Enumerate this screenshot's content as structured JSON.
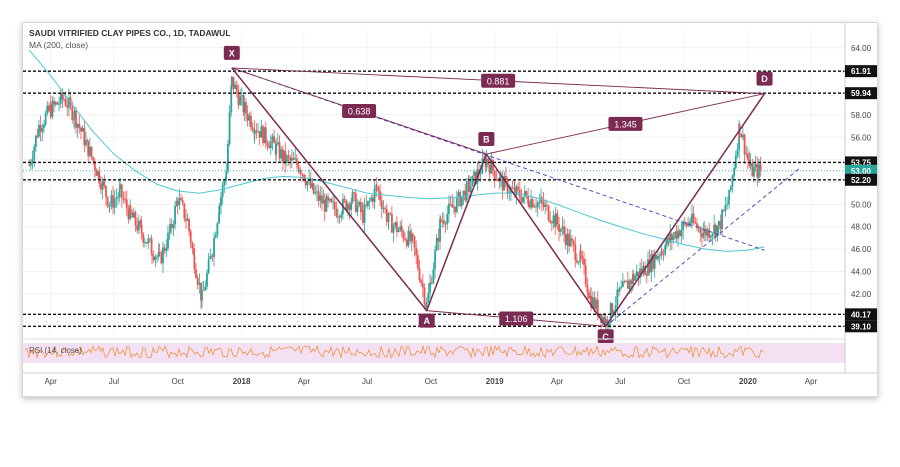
{
  "header": {
    "title": "SAUDI VITRIFIED CLAY PIPES CO., 1D, TADAWUL",
    "ma_label": "MA (200, close)"
  },
  "rsi_label": "RSI (14, close)",
  "colors": {
    "up": "#26a69a",
    "down": "#ef5350",
    "ma": "#4dc9d4",
    "pattern": "#7b2a52",
    "rsi": "#f08a2c",
    "rsi_band": "#f3e0f3",
    "trend": "#4040c0"
  },
  "chart_data": {
    "type": "candlestick",
    "title": "SAUDI VITRIFIED CLAY PIPES CO., 1D, TADAWUL",
    "ylim": [
      38.5,
      65.5
    ],
    "y_ticks": [
      "42.00",
      "44.00",
      "46.00",
      "48.00",
      "50.00",
      "52.00",
      "54.00",
      "56.00",
      "58.00",
      "60.00",
      "62.00",
      "64.00"
    ],
    "x_ticks": [
      "Apr",
      "Jul",
      "Oct",
      "2018",
      "Apr",
      "Jul",
      "Oct",
      "2019",
      "Apr",
      "Jul",
      "Oct",
      "2020",
      "Apr"
    ],
    "price_levels": [
      {
        "label": "61.91",
        "value": 61.91,
        "style": "dark"
      },
      {
        "label": "59.94",
        "value": 59.94,
        "style": "dark"
      },
      {
        "label": "53.75",
        "value": 53.75,
        "style": "dark"
      },
      {
        "label": "53.00",
        "value": 53.0,
        "style": "current"
      },
      {
        "label": "52.20",
        "value": 52.2,
        "style": "dark"
      },
      {
        "label": "40.17",
        "value": 40.17,
        "style": "dark"
      },
      {
        "label": "39.10",
        "value": 39.1,
        "style": "dark"
      }
    ],
    "pattern_points": [
      {
        "label": "X",
        "date": "2017-12-18",
        "value": 62.2
      },
      {
        "label": "A",
        "date": "2018-09-25",
        "value": 40.5
      },
      {
        "label": "B",
        "date": "2018-12-20",
        "value": 54.5
      },
      {
        "label": "C",
        "date": "2019-06-10",
        "value": 39.1
      },
      {
        "label": "D",
        "date": "2020-01-25",
        "value": 59.9
      }
    ],
    "ratios": [
      {
        "label": "0.881",
        "from": "X",
        "to": "D"
      },
      {
        "label": "0.638",
        "from": "X",
        "to": "B"
      },
      {
        "label": "1.345",
        "from": "B",
        "to": "D"
      },
      {
        "label": "1.106",
        "from": "A",
        "to": "C"
      }
    ],
    "price_path": [
      [
        "2017-03-01",
        53.5
      ],
      [
        "2017-03-15",
        57.0
      ],
      [
        "2017-04-01",
        58.5
      ],
      [
        "2017-04-20",
        59.5
      ],
      [
        "2017-05-05",
        58.0
      ],
      [
        "2017-05-25",
        55.0
      ],
      [
        "2017-06-10",
        52.5
      ],
      [
        "2017-06-25",
        50.0
      ],
      [
        "2017-07-10",
        51.0
      ],
      [
        "2017-07-25",
        49.0
      ],
      [
        "2017-08-10",
        47.5
      ],
      [
        "2017-08-25",
        46.0
      ],
      [
        "2017-09-05",
        45.0
      ],
      [
        "2017-09-20",
        47.5
      ],
      [
        "2017-10-01",
        50.5
      ],
      [
        "2017-10-15",
        48.5
      ],
      [
        "2017-10-25",
        45.0
      ],
      [
        "2017-11-05",
        41.5
      ],
      [
        "2017-11-20",
        46.0
      ],
      [
        "2017-11-30",
        50.0
      ],
      [
        "2017-12-10",
        53.0
      ],
      [
        "2017-12-18",
        61.0
      ],
      [
        "2018-01-05",
        58.5
      ],
      [
        "2018-01-20",
        57.0
      ],
      [
        "2018-02-05",
        56.0
      ],
      [
        "2018-02-20",
        55.0
      ],
      [
        "2018-03-05",
        54.0
      ],
      [
        "2018-03-25",
        53.5
      ],
      [
        "2018-04-15",
        51.0
      ],
      [
        "2018-05-01",
        50.0
      ],
      [
        "2018-05-20",
        49.5
      ],
      [
        "2018-06-10",
        50.5
      ],
      [
        "2018-06-25",
        49.0
      ],
      [
        "2018-07-15",
        51.5
      ],
      [
        "2018-08-01",
        48.5
      ],
      [
        "2018-08-20",
        47.5
      ],
      [
        "2018-09-05",
        46.5
      ],
      [
        "2018-09-25",
        41.0
      ],
      [
        "2018-10-15",
        48.5
      ],
      [
        "2018-11-05",
        50.0
      ],
      [
        "2018-11-25",
        51.5
      ],
      [
        "2018-12-20",
        54.0
      ],
      [
        "2019-01-10",
        52.0
      ],
      [
        "2019-01-30",
        51.0
      ],
      [
        "2019-02-20",
        50.5
      ],
      [
        "2019-03-10",
        50.0
      ],
      [
        "2019-03-30",
        48.5
      ],
      [
        "2019-04-20",
        46.5
      ],
      [
        "2019-05-05",
        45.0
      ],
      [
        "2019-05-20",
        41.5
      ],
      [
        "2019-06-10",
        39.5
      ],
      [
        "2019-06-30",
        42.0
      ],
      [
        "2019-07-20",
        43.5
      ],
      [
        "2019-08-10",
        44.5
      ],
      [
        "2019-08-30",
        46.0
      ],
      [
        "2019-09-20",
        47.5
      ],
      [
        "2019-10-10",
        48.5
      ],
      [
        "2019-10-30",
        47.5
      ],
      [
        "2019-11-20",
        48.0
      ],
      [
        "2019-12-05",
        50.5
      ],
      [
        "2019-12-20",
        57.0
      ],
      [
        "2020-01-05",
        53.0
      ],
      [
        "2020-01-20",
        53.0
      ]
    ],
    "ma_path": [
      [
        "2017-03-01",
        63.8
      ],
      [
        "2017-04-01",
        61.5
      ],
      [
        "2017-05-01",
        59.0
      ],
      [
        "2017-06-01",
        56.5
      ],
      [
        "2017-07-01",
        54.5
      ],
      [
        "2017-08-01",
        53.0
      ],
      [
        "2017-09-01",
        51.8
      ],
      [
        "2017-10-01",
        51.2
      ],
      [
        "2017-11-01",
        51.0
      ],
      [
        "2017-12-01",
        51.3
      ],
      [
        "2018-01-01",
        51.8
      ],
      [
        "2018-02-01",
        52.3
      ],
      [
        "2018-03-01",
        52.5
      ],
      [
        "2018-04-01",
        52.4
      ],
      [
        "2018-05-01",
        52.0
      ],
      [
        "2018-06-01",
        51.5
      ],
      [
        "2018-07-01",
        51.0
      ],
      [
        "2018-08-01",
        50.8
      ],
      [
        "2018-09-01",
        50.6
      ],
      [
        "2018-10-01",
        50.5
      ],
      [
        "2018-11-01",
        50.6
      ],
      [
        "2018-12-01",
        50.8
      ],
      [
        "2019-01-01",
        51.0
      ],
      [
        "2019-02-01",
        51.0
      ],
      [
        "2019-03-01",
        50.6
      ],
      [
        "2019-04-01",
        50.0
      ],
      [
        "2019-05-01",
        49.3
      ],
      [
        "2019-06-01",
        48.6
      ],
      [
        "2019-07-01",
        48.0
      ],
      [
        "2019-08-01",
        47.4
      ],
      [
        "2019-09-01",
        46.9
      ],
      [
        "2019-10-01",
        46.4
      ],
      [
        "2019-11-01",
        46.0
      ],
      [
        "2019-12-01",
        45.8
      ],
      [
        "2020-01-01",
        45.9
      ],
      [
        "2020-01-25",
        46.2
      ]
    ],
    "trendlines": [
      {
        "from": [
          "2017-12-18",
          62.2
        ],
        "to": [
          "2020-01-25",
          45.9
        ],
        "style": "dashed"
      },
      {
        "from": [
          "2019-06-10",
          39.1
        ],
        "to": [
          "2020-03-15",
          53.2
        ],
        "style": "dashed"
      }
    ]
  }
}
